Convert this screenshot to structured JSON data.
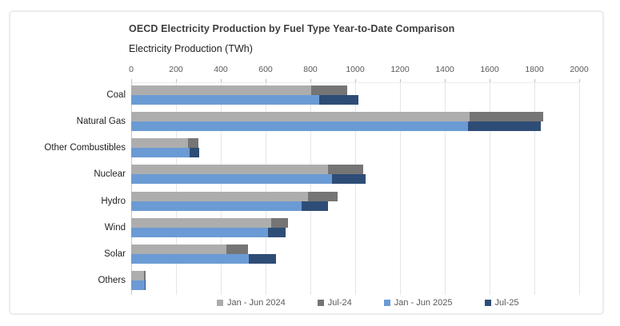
{
  "chart": {
    "title": "OECD Electricity Production by Fuel Type Year-to-Date Comparison",
    "subtitle": "Electricity Production (TWh)",
    "chart_data": {
      "type": "bar",
      "orientation": "horizontal",
      "title": "OECD Electricity Production by Fuel Type Year-to-Date Comparison",
      "xlabel": "Electricity Production (TWh)",
      "categories": [
        "Coal",
        "Natural Gas",
        "Other Combustibles",
        "Nuclear",
        "Hydro",
        "Wind",
        "Solar",
        "Others"
      ],
      "series": [
        {
          "name": "Jan - Jun 2024",
          "color": "#adadad",
          "values": [
            805,
            1510,
            255,
            880,
            790,
            625,
            425,
            58
          ]
        },
        {
          "name": "Jul-24",
          "color": "#757575",
          "values": [
            160,
            330,
            45,
            155,
            130,
            75,
            95,
            5
          ]
        },
        {
          "name": "Jan - Jun 2025",
          "color": "#6b9bd4",
          "values": [
            840,
            1505,
            260,
            895,
            760,
            610,
            525,
            60
          ]
        },
        {
          "name": "Jul-25",
          "color": "#2e4d76",
          "values": [
            175,
            325,
            45,
            150,
            120,
            80,
            120,
            5
          ]
        }
      ],
      "stacked_pairs": [
        [
          0,
          1
        ],
        [
          2,
          3
        ]
      ],
      "xlim": [
        0,
        2000
      ],
      "x_ticks": [
        0,
        200,
        400,
        600,
        800,
        1000,
        1200,
        1400,
        1600,
        1800,
        2000
      ],
      "grid": "vertical",
      "legend_position": "bottom"
    }
  }
}
